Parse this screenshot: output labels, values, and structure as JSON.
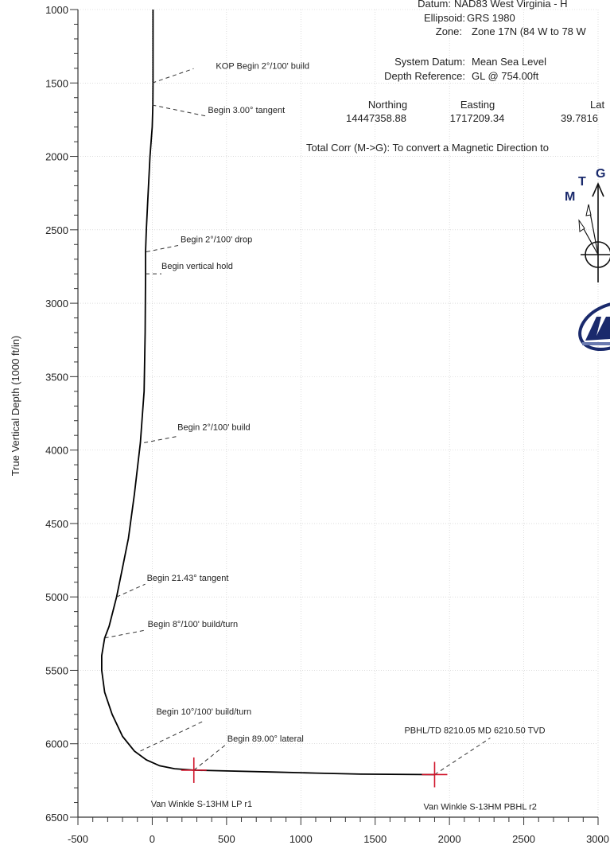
{
  "header": {
    "datum_label": "Datum:",
    "datum_value": "NAD83 West Virginia - H",
    "ellipsoid_label": "Ellipsoid:",
    "ellipsoid_value": "GRS 1980",
    "zone_label": "Zone:",
    "zone_value": "Zone 17N (84 W to 78 W",
    "system_datum_label": "System Datum:",
    "system_datum_value": "Mean Sea Level",
    "depth_ref_label": "Depth Reference:",
    "depth_ref_value": "GL @ 754.00ft",
    "northing_label": "Northing",
    "northing_value": "14447358.88",
    "easting_label": "Easting",
    "easting_value": "1717209.34",
    "lat_label": "Lat",
    "lat_value": "39.7816",
    "total_corr": "Total Corr (M->G):   To convert a Magnetic Direction to"
  },
  "north_arrow": {
    "m": "M",
    "t": "T",
    "g": "G"
  },
  "colors": {
    "curve": "#000000",
    "marker": "#d0142a",
    "grid": "#c8c8c8",
    "axis": "#333333",
    "arrow_blue": "#1a2a6c"
  },
  "chart_data": {
    "type": "line",
    "title": "",
    "xlabel": "",
    "ylabel": "True Vertical Depth (1000 ft/in)",
    "xlim": [
      -500,
      3000
    ],
    "ylim": [
      1000,
      6500
    ],
    "y_inverted": true,
    "x_ticks": [
      -500,
      0,
      500,
      1000,
      1500,
      2000,
      2500,
      3000
    ],
    "y_ticks": [
      1000,
      1500,
      2000,
      2500,
      3000,
      3500,
      4000,
      4500,
      5000,
      5500,
      6000,
      6500
    ],
    "x_tick_labels": [
      "-500",
      "0",
      "500",
      "1000",
      "1500",
      "2000",
      "2500",
      "3000"
    ],
    "y_tick_labels": [
      "1000",
      "1500",
      "2000",
      "2500",
      "3000",
      "3500",
      "4000",
      "4500",
      "5000",
      "5500",
      "6000",
      "6500"
    ],
    "grid": true,
    "series": [
      {
        "x": [
          5,
          5,
          5,
          4,
          0,
          -15,
          -30,
          -40,
          -45,
          -45,
          -48,
          -55,
          -80,
          -120,
          -160,
          -200,
          -240,
          -290,
          -320,
          -340,
          -340,
          -320,
          -270,
          -200,
          -120,
          -40,
          50,
          150,
          280,
          500,
          800,
          1100,
          1400,
          1900
        ],
        "y": [
          1000,
          1250,
          1500,
          1650,
          1800,
          2000,
          2300,
          2500,
          2650,
          2800,
          3200,
          3600,
          3950,
          4300,
          4600,
          4800,
          5000,
          5200,
          5280,
          5400,
          5500,
          5650,
          5800,
          5950,
          6050,
          6110,
          6150,
          6170,
          6180,
          6185,
          6192,
          6200,
          6207,
          6210
        ]
      }
    ],
    "markers": [
      {
        "x": 280,
        "y": 6180
      },
      {
        "x": 1900,
        "y": 6210
      }
    ],
    "annotations": [
      {
        "text": "KOP Begin 2°/100' build",
        "x": 0,
        "y": 1500
      },
      {
        "text": "Begin 3.00° tangent",
        "x": 0,
        "y": 1650
      },
      {
        "text": "Begin 2°/100' drop",
        "x": -40,
        "y": 2650
      },
      {
        "text": "Begin vertical hold",
        "x": -45,
        "y": 2800
      },
      {
        "text": "Begin 2°/100' build",
        "x": -55,
        "y": 3950
      },
      {
        "text": "Begin 21.43° tangent",
        "x": -240,
        "y": 5000
      },
      {
        "text": "Begin 8°/100' build/turn",
        "x": -320,
        "y": 5280
      },
      {
        "text": "Begin 10°/100' build/turn",
        "x": -80,
        "y": 6050
      },
      {
        "text": "Begin 89.00° lateral",
        "x": 280,
        "y": 6180
      },
      {
        "text": "PBHL/TD 8210.05 MD 6210.50 TVD",
        "x": 1900,
        "y": 6210
      },
      {
        "text": "Van Winkle S-13HM LP r1",
        "x": 280,
        "y": 6180
      },
      {
        "text": "Van Winkle S-13HM PBHL r2",
        "x": 1900,
        "y": 6210
      }
    ]
  }
}
